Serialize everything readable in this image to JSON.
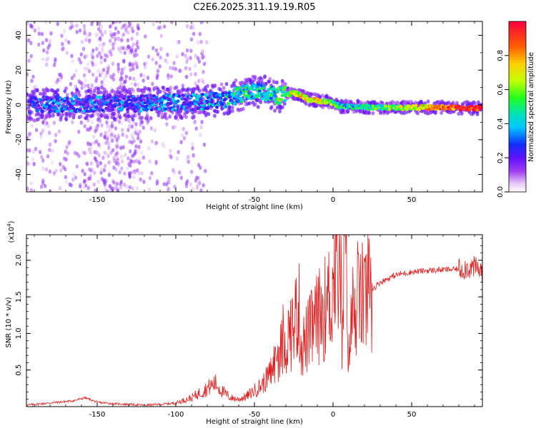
{
  "title": "C2E6.2025.311.19.19.R05",
  "chart_data": [
    {
      "type": "heatmap",
      "xlabel": "Height of straight line (km)",
      "ylabel": "Frequency (Hz)",
      "xlim": [
        -195,
        95
      ],
      "ylim": [
        -50,
        48
      ],
      "xticks": [
        -150,
        -100,
        -50,
        0,
        50
      ],
      "xtick_labels": [
        "-150",
        "-100",
        "-50",
        "0",
        "50"
      ],
      "yticks": [
        -40,
        -20,
        0,
        20,
        40
      ],
      "ytick_labels": [
        "-40",
        "-20",
        "0",
        "20",
        "40"
      ],
      "colorbar": {
        "label": "Normalized spectral amplitude",
        "range": [
          0,
          1
        ],
        "ticks": [
          0.0,
          0.2,
          0.4,
          0.6,
          0.8
        ],
        "tick_labels": [
          "0.0",
          "0.2",
          "0.4",
          "0.6",
          "0.8"
        ]
      },
      "ridge": {
        "x": [
          -190,
          -170,
          -150,
          -130,
          -110,
          -90,
          -70,
          -55,
          -45,
          -35,
          -25,
          -15,
          -5,
          0,
          5,
          15,
          30,
          50,
          70,
          92
        ],
        "freq": [
          0,
          0.5,
          1,
          0.5,
          1,
          1.5,
          3,
          7,
          8,
          5,
          7,
          3,
          2,
          1,
          -1,
          -1,
          -1.5,
          -1.5,
          -1.5,
          -2
        ],
        "amplitude": [
          0.25,
          0.3,
          0.3,
          0.28,
          0.3,
          0.32,
          0.4,
          0.45,
          0.42,
          0.5,
          0.7,
          0.75,
          0.65,
          0.6,
          0.5,
          0.45,
          0.55,
          0.7,
          0.85,
          1.0
        ]
      }
    },
    {
      "type": "line",
      "xlabel": "Height of straight line (km)",
      "ylabel": "SNR (10 * v/v)",
      "scale_label": "(x10",
      "scale_exponent": "4",
      "xlim": [
        -195,
        95
      ],
      "ylim": [
        0,
        2.35
      ],
      "xticks": [
        -150,
        -100,
        -50,
        0,
        50
      ],
      "xtick_labels": [
        "-150",
        "-100",
        "-50",
        "0",
        "50"
      ],
      "yticks": [
        0.5,
        1.0,
        1.5,
        2.0
      ],
      "ytick_labels": [
        "0.5",
        "1.0",
        "1.5",
        "2.0"
      ],
      "series": [
        {
          "name": "SNR",
          "color": "#e02020",
          "x": [
            -195,
            -180,
            -165,
            -158,
            -155,
            -150,
            -140,
            -130,
            -120,
            -110,
            -100,
            -90,
            -80,
            -75,
            -70,
            -65,
            -60,
            -55,
            -50,
            -45,
            -40,
            -35,
            -30,
            -25,
            -22,
            -20,
            -15,
            -10,
            -5,
            0,
            2,
            4,
            6,
            8,
            10,
            12,
            15,
            20,
            25,
            30,
            35,
            40,
            50,
            60,
            70,
            80,
            85,
            90,
            95
          ],
          "values": [
            0.02,
            0.05,
            0.08,
            0.12,
            0.1,
            0.06,
            0.04,
            0.03,
            0.02,
            0.03,
            0.05,
            0.12,
            0.25,
            0.32,
            0.2,
            0.12,
            0.1,
            0.14,
            0.22,
            0.3,
            0.45,
            0.7,
            0.9,
            1.1,
            1.4,
            0.8,
            1.0,
            1.2,
            1.35,
            1.6,
            2.1,
            1.9,
            1.3,
            2.2,
            0.6,
            1.3,
            1.4,
            1.5,
            1.6,
            1.7,
            1.75,
            1.8,
            1.84,
            1.86,
            1.87,
            1.88,
            1.9,
            1.9,
            1.85
          ]
        }
      ]
    }
  ]
}
